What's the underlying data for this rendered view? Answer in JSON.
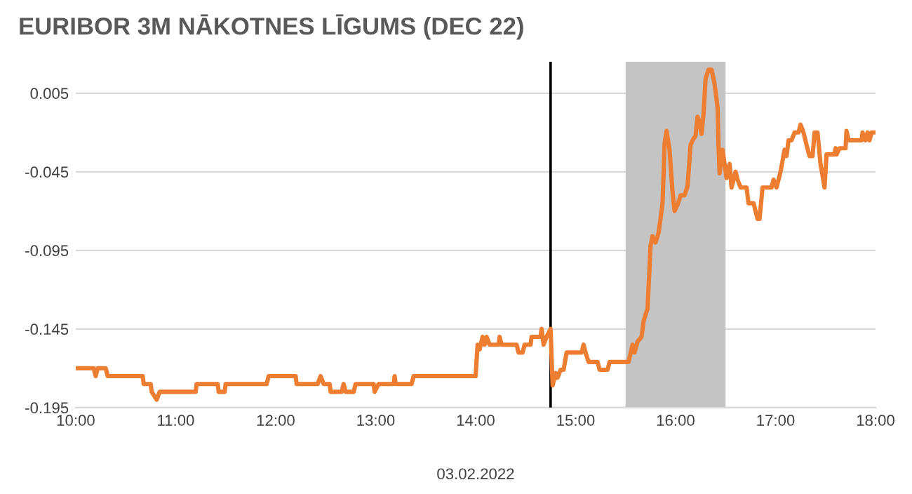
{
  "chart_data": {
    "type": "line",
    "title": "EURIBOR 3M NĀKOTNES LĪGUMS (DEC 22)",
    "xlabel": "03.02.2022",
    "series": [
      {
        "color": "#ed7d31",
        "x": [
          10.0,
          10.18,
          10.2,
          10.22,
          10.3,
          10.32,
          10.67,
          10.68,
          10.75,
          10.76,
          10.81,
          10.84,
          11.2,
          11.21,
          11.42,
          11.43,
          11.49,
          11.5,
          11.91,
          11.93,
          12.2,
          12.21,
          12.42,
          12.45,
          12.48,
          12.54,
          12.55,
          12.66,
          12.68,
          12.7,
          12.78,
          12.8,
          12.98,
          12.99,
          13.03,
          13.18,
          13.19,
          13.2,
          13.36,
          13.38,
          14.0,
          14.02,
          14.04,
          14.07,
          14.09,
          14.11,
          14.14,
          14.23,
          14.24,
          14.26,
          14.41,
          14.43,
          14.47,
          14.49,
          14.55,
          14.56,
          14.65,
          14.66,
          14.68,
          14.71,
          14.75,
          14.77,
          14.8,
          14.82,
          14.85,
          14.88,
          14.91,
          15.06,
          15.08,
          15.1,
          15.13,
          15.22,
          15.24,
          15.32,
          15.34,
          15.53,
          15.57,
          15.59,
          15.62,
          15.66,
          15.68,
          15.72,
          15.75,
          15.77,
          15.8,
          15.83,
          15.87,
          15.89,
          15.91,
          15.94,
          15.97,
          15.99,
          16.02,
          16.05,
          16.09,
          16.12,
          16.15,
          16.17,
          16.2,
          16.22,
          16.24,
          16.26,
          16.28,
          16.3,
          16.33,
          16.36,
          16.39,
          16.42,
          16.43,
          16.44,
          16.47,
          16.49,
          16.51,
          16.54,
          16.56,
          16.6,
          16.62,
          16.65,
          16.71,
          16.73,
          16.78,
          16.82,
          16.84,
          16.87,
          16.96,
          16.98,
          17.01,
          17.05,
          17.09,
          17.11,
          17.13,
          17.16,
          17.19,
          17.23,
          17.25,
          17.28,
          17.31,
          17.34,
          17.37,
          17.39,
          17.42,
          17.45,
          17.49,
          17.51,
          17.59,
          17.6,
          17.61,
          17.64,
          17.7,
          17.71,
          17.73,
          17.86,
          17.87,
          17.9,
          17.92,
          17.94,
          17.96,
          18.0
        ],
        "values": [
          -0.17,
          -0.17,
          -0.175,
          -0.17,
          -0.17,
          -0.175,
          -0.175,
          -0.18,
          -0.18,
          -0.185,
          -0.19,
          -0.185,
          -0.185,
          -0.18,
          -0.18,
          -0.185,
          -0.185,
          -0.18,
          -0.18,
          -0.175,
          -0.175,
          -0.18,
          -0.18,
          -0.175,
          -0.18,
          -0.18,
          -0.185,
          -0.185,
          -0.18,
          -0.185,
          -0.185,
          -0.18,
          -0.18,
          -0.185,
          -0.18,
          -0.18,
          -0.175,
          -0.18,
          -0.18,
          -0.175,
          -0.175,
          -0.155,
          -0.158,
          -0.15,
          -0.155,
          -0.15,
          -0.155,
          -0.155,
          -0.15,
          -0.155,
          -0.155,
          -0.16,
          -0.16,
          -0.155,
          -0.155,
          -0.15,
          -0.15,
          -0.145,
          -0.155,
          -0.15,
          -0.145,
          -0.181,
          -0.173,
          -0.176,
          -0.171,
          -0.171,
          -0.16,
          -0.16,
          -0.155,
          -0.16,
          -0.166,
          -0.166,
          -0.171,
          -0.171,
          -0.166,
          -0.166,
          -0.155,
          -0.16,
          -0.153,
          -0.15,
          -0.14,
          -0.132,
          -0.092,
          -0.086,
          -0.09,
          -0.084,
          -0.065,
          -0.027,
          -0.019,
          -0.031,
          -0.058,
          -0.07,
          -0.066,
          -0.06,
          -0.06,
          -0.054,
          -0.028,
          -0.025,
          -0.022,
          -0.01,
          -0.013,
          -0.021,
          -0.008,
          0.014,
          0.02,
          0.02,
          0.011,
          -0.004,
          -0.028,
          -0.046,
          -0.031,
          -0.04,
          -0.049,
          -0.04,
          -0.055,
          -0.045,
          -0.05,
          -0.055,
          -0.055,
          -0.065,
          -0.065,
          -0.075,
          -0.075,
          -0.055,
          -0.055,
          -0.05,
          -0.055,
          -0.045,
          -0.031,
          -0.035,
          -0.025,
          -0.025,
          -0.02,
          -0.02,
          -0.015,
          -0.02,
          -0.028,
          -0.035,
          -0.035,
          -0.02,
          -0.02,
          -0.04,
          -0.055,
          -0.034,
          -0.034,
          -0.03,
          -0.034,
          -0.03,
          -0.03,
          -0.019,
          -0.025,
          -0.025,
          -0.02,
          -0.025,
          -0.02,
          -0.025,
          -0.02,
          -0.02
        ]
      }
    ],
    "xlim": [
      10,
      18
    ],
    "xticks": [
      {
        "value": 10,
        "label": "10:00"
      },
      {
        "value": 11,
        "label": "11:00"
      },
      {
        "value": 12,
        "label": "12:00"
      },
      {
        "value": 13,
        "label": "13:00"
      },
      {
        "value": 14,
        "label": "14:00"
      },
      {
        "value": 15,
        "label": "15:00"
      },
      {
        "value": 16,
        "label": "16:00"
      },
      {
        "value": 17,
        "label": "17:00"
      },
      {
        "value": 18,
        "label": "18:00"
      }
    ],
    "ylim": [
      -0.195,
      0.025
    ],
    "yticks": [
      -0.195,
      -0.145,
      -0.095,
      -0.045,
      0.005
    ],
    "grid": "y",
    "ref_lines": [
      {
        "axis": "x",
        "value": 14.75,
        "color": "#000000"
      }
    ],
    "bands": [
      {
        "axis": "x",
        "from": 15.5,
        "to": 16.5,
        "color": "#c4c4c4"
      }
    ]
  }
}
